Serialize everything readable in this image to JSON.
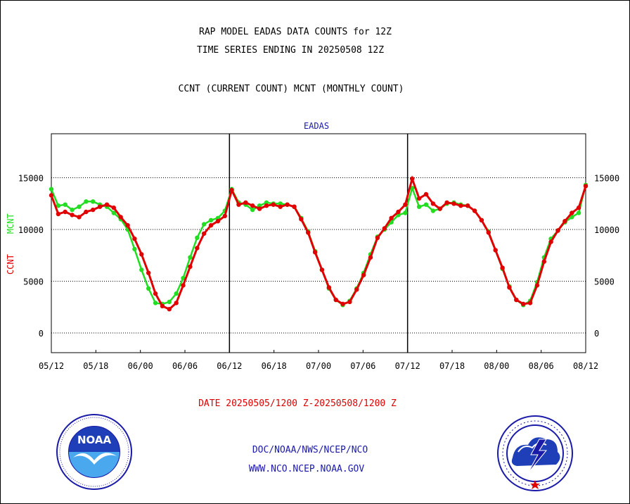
{
  "header": {
    "title_line1": "RAP MODEL EADAS DATA COUNTS for 12Z",
    "title_line2": "TIME SERIES ENDING IN 20250508 12Z",
    "subtitle": "CCNT (CURRENT COUNT) MCNT (MONTHLY COUNT)",
    "panel_title": "EADAS"
  },
  "axis": {
    "ylabel_ccnt": "CCNT",
    "ylabel_mcnt": "MCNT"
  },
  "footer": {
    "date_range": "DATE 20250505/1200 Z-20250508/1200 Z",
    "line1": "DOC/NOAA/NWS/NCEP/NCO",
    "line2": "WWW.NCO.NCEP.NOAA.GOV"
  },
  "logos": {
    "left": "noaa-logo",
    "right": "national-weather-service-logo",
    "left_text": "NOAA"
  },
  "colors": {
    "ccnt": "#e00000",
    "mcnt": "#22dd22",
    "axis": "#000000",
    "title": "#000000",
    "blue_text": "#1a1aa8"
  },
  "chart_data": {
    "type": "line",
    "x_ticks": [
      "05/12",
      "05/18",
      "06/00",
      "06/06",
      "06/12",
      "06/18",
      "07/00",
      "07/06",
      "07/12",
      "07/18",
      "08/00",
      "08/06",
      "08/12"
    ],
    "y_ticks": [
      0,
      5000,
      10000,
      15000
    ],
    "ylim": [
      -1800,
      19000
    ],
    "grid": "dotted horizontal",
    "series": [
      {
        "name": "CCNT",
        "values": [
          13300,
          11500,
          11700,
          11400,
          11200,
          11700,
          11900,
          12200,
          12400,
          12100,
          11200,
          10400,
          9100,
          7600,
          5800,
          3800,
          2600,
          2300,
          2900,
          4600,
          6400,
          8200,
          9600,
          10400,
          10800,
          11300,
          13800,
          12400,
          12600,
          12300,
          12000,
          12300,
          12400,
          12200,
          12400,
          12200,
          11000,
          9700,
          7800,
          6100,
          4400,
          3200,
          2800,
          3000,
          4200,
          5600,
          7300,
          9200,
          10100,
          11100,
          11700,
          12400,
          14900,
          13000,
          13400,
          12500,
          12000,
          12600,
          12500,
          12300,
          12300,
          11800,
          10900,
          9700,
          8000,
          6300,
          4400,
          3200,
          2800,
          2900,
          4600,
          6900,
          8800,
          9900,
          10800,
          11600,
          12100,
          14200
        ]
      },
      {
        "name": "MCNT",
        "values": [
          13900,
          12300,
          12400,
          11900,
          12200,
          12700,
          12700,
          12400,
          12200,
          11600,
          11000,
          10000,
          8100,
          6100,
          4300,
          2900,
          2800,
          3000,
          3800,
          5300,
          7300,
          9200,
          10500,
          10900,
          11100,
          11800,
          13900,
          12600,
          12400,
          11900,
          12300,
          12600,
          12500,
          12500,
          12400,
          12200,
          11100,
          9800,
          7900,
          6100,
          4300,
          3200,
          2700,
          3100,
          4300,
          5800,
          7600,
          9300,
          10000,
          10700,
          11400,
          11600,
          14000,
          12200,
          12400,
          11800,
          12000,
          12500,
          12600,
          12400,
          12300,
          11800,
          10900,
          9800,
          8000,
          6200,
          4500,
          3200,
          2700,
          3100,
          4900,
          7300,
          9100,
          9900,
          10700,
          11200,
          11600,
          14300
        ]
      }
    ]
  }
}
